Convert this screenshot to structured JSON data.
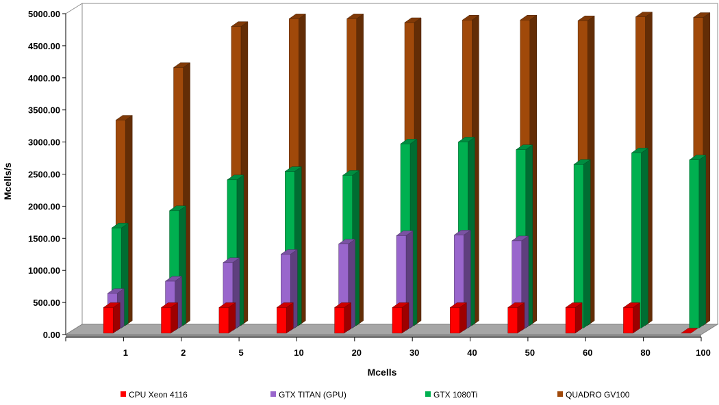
{
  "chart_data": {
    "type": "bar",
    "style": "3d-clustered-column",
    "xlabel": "Mcells",
    "ylabel": "Mcells/s",
    "ylim": [
      0,
      5000
    ],
    "y_ticks": [
      "0.00",
      "500.00",
      "1000.00",
      "1500.00",
      "2000.00",
      "2500.00",
      "3000.00",
      "3500.00",
      "4000.00",
      "4500.00",
      "5000.00"
    ],
    "categories": [
      "1",
      "2",
      "5",
      "10",
      "20",
      "30",
      "40",
      "50",
      "60",
      "80",
      "100"
    ],
    "grid": false,
    "legend_position": "bottom",
    "series": [
      {
        "name": "CPU Xeon 4116",
        "color": "#ff0000",
        "values": [
          400,
          400,
          400,
          400,
          400,
          400,
          400,
          400,
          400,
          400,
          0
        ]
      },
      {
        "name": "GTX TITAN (GPU)",
        "color": "#9966cc",
        "values": [
          580,
          770,
          1060,
          1190,
          1350,
          1480,
          1490,
          1400,
          null,
          null,
          null
        ]
      },
      {
        "name": "GTX 1080Ti",
        "color": "#00b050",
        "values": [
          1560,
          1830,
          2310,
          2440,
          2380,
          2870,
          2900,
          2780,
          2550,
          2730,
          2620
        ]
      },
      {
        "name": "QUADRO GV100",
        "color": "#a0490a",
        "values": [
          3200,
          4020,
          4660,
          4780,
          4780,
          4720,
          4760,
          4760,
          4750,
          4810,
          4800
        ]
      }
    ]
  }
}
